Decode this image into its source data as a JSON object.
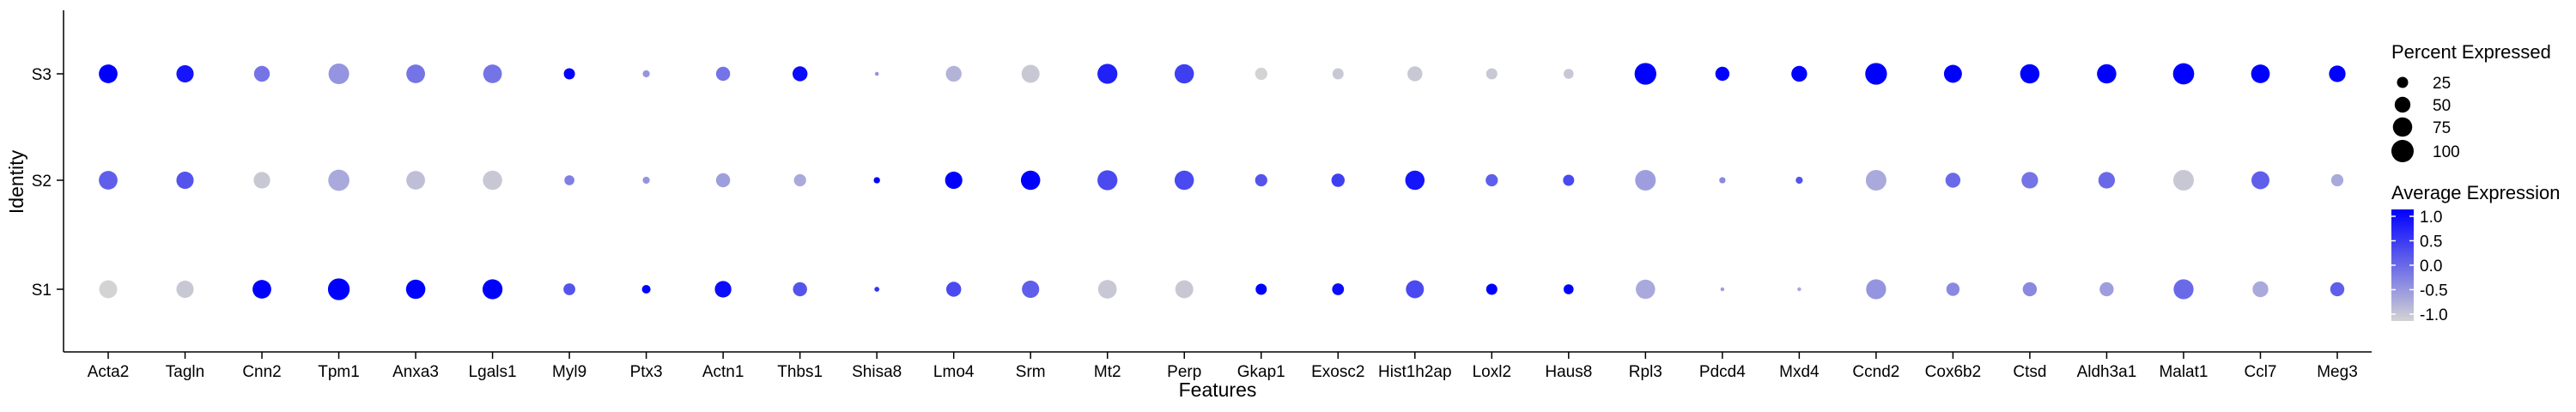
{
  "chart_data": {
    "type": "scatter",
    "xlabel": "Features",
    "ylabel": "Identity",
    "categories": [
      "Acta2",
      "Tagln",
      "Cnn2",
      "Tpm1",
      "Anxa3",
      "Lgals1",
      "Myl9",
      "Ptx3",
      "Actn1",
      "Thbs1",
      "Shisa8",
      "Lmo4",
      "Srm",
      "Mt2",
      "Perp",
      "Gkap1",
      "Exosc2",
      "Hist1h2ap",
      "Loxl2",
      "Haus8",
      "Rpl3",
      "Pdcd4",
      "Mxd4",
      "Ccnd2",
      "Cox6b2",
      "Ctsd",
      "Aldh3a1",
      "Malat1",
      "Ccl7",
      "Meg3"
    ],
    "identities": [
      "S1",
      "S2",
      "S3"
    ],
    "series": [
      {
        "name": "S1",
        "pct": [
          65,
          60,
          70,
          95,
          75,
          80,
          28,
          15,
          55,
          40,
          5,
          45,
          60,
          70,
          65,
          25,
          28,
          65,
          25,
          20,
          75,
          3,
          3,
          80,
          35,
          40,
          40,
          80,
          50,
          40
        ],
        "avg": [
          -1.0,
          -0.9,
          1.0,
          1.0,
          1.0,
          1.0,
          0.2,
          1.0,
          0.9,
          0.2,
          0.5,
          0.3,
          0.1,
          -0.9,
          -0.9,
          1.0,
          0.9,
          0.3,
          1.0,
          1.0,
          -0.6,
          -0.5,
          -0.6,
          -0.4,
          -0.3,
          -0.3,
          -0.5,
          0.0,
          -0.6,
          0.1
        ]
      },
      {
        "name": "S2",
        "pct": [
          70,
          60,
          55,
          90,
          70,
          75,
          20,
          10,
          40,
          30,
          8,
          60,
          75,
          80,
          75,
          30,
          35,
          75,
          30,
          25,
          85,
          8,
          10,
          85,
          45,
          55,
          55,
          85,
          65,
          30
        ],
        "avg": [
          0.1,
          0.2,
          -0.9,
          -0.6,
          -0.8,
          -0.9,
          -0.2,
          -0.4,
          -0.5,
          -0.6,
          1.0,
          1.0,
          1.0,
          0.3,
          0.3,
          0.2,
          0.4,
          0.8,
          0.1,
          0.3,
          -0.5,
          -0.3,
          0.2,
          -0.6,
          0.0,
          -0.1,
          0.0,
          -0.9,
          0.1,
          -0.6
        ]
      },
      {
        "name": "S3",
        "pct": [
          70,
          60,
          50,
          85,
          70,
          70,
          25,
          10,
          40,
          45,
          3,
          50,
          65,
          80,
          75,
          30,
          25,
          45,
          25,
          20,
          95,
          40,
          50,
          95,
          65,
          75,
          75,
          90,
          70,
          55
        ],
        "avg": [
          1.0,
          0.8,
          -0.1,
          -0.4,
          -0.1,
          -0.1,
          1.0,
          -0.4,
          -0.1,
          0.9,
          -0.4,
          -0.7,
          -0.9,
          0.7,
          0.4,
          -1.0,
          -0.9,
          -0.9,
          -0.9,
          -0.9,
          1.0,
          1.0,
          1.0,
          1.0,
          1.0,
          1.0,
          1.0,
          1.0,
          1.0,
          1.0
        ]
      }
    ],
    "legend_size": {
      "title": "Percent Expressed",
      "values": [
        25,
        50,
        75,
        100
      ],
      "labels": [
        "25",
        "50",
        "75",
        "100"
      ]
    },
    "legend_color": {
      "title": "Average Expression",
      "ticks": [
        1.0,
        0.5,
        0.0,
        -0.5,
        -1.0
      ],
      "labels": [
        "1.0",
        "0.5",
        "0.0",
        "-0.5",
        "-1.0"
      ],
      "low_color": "#d3d3d3",
      "high_color": "#0000ff"
    },
    "color_range": [
      -1.0,
      1.0
    ],
    "grid": false,
    "legend_position": "right"
  }
}
